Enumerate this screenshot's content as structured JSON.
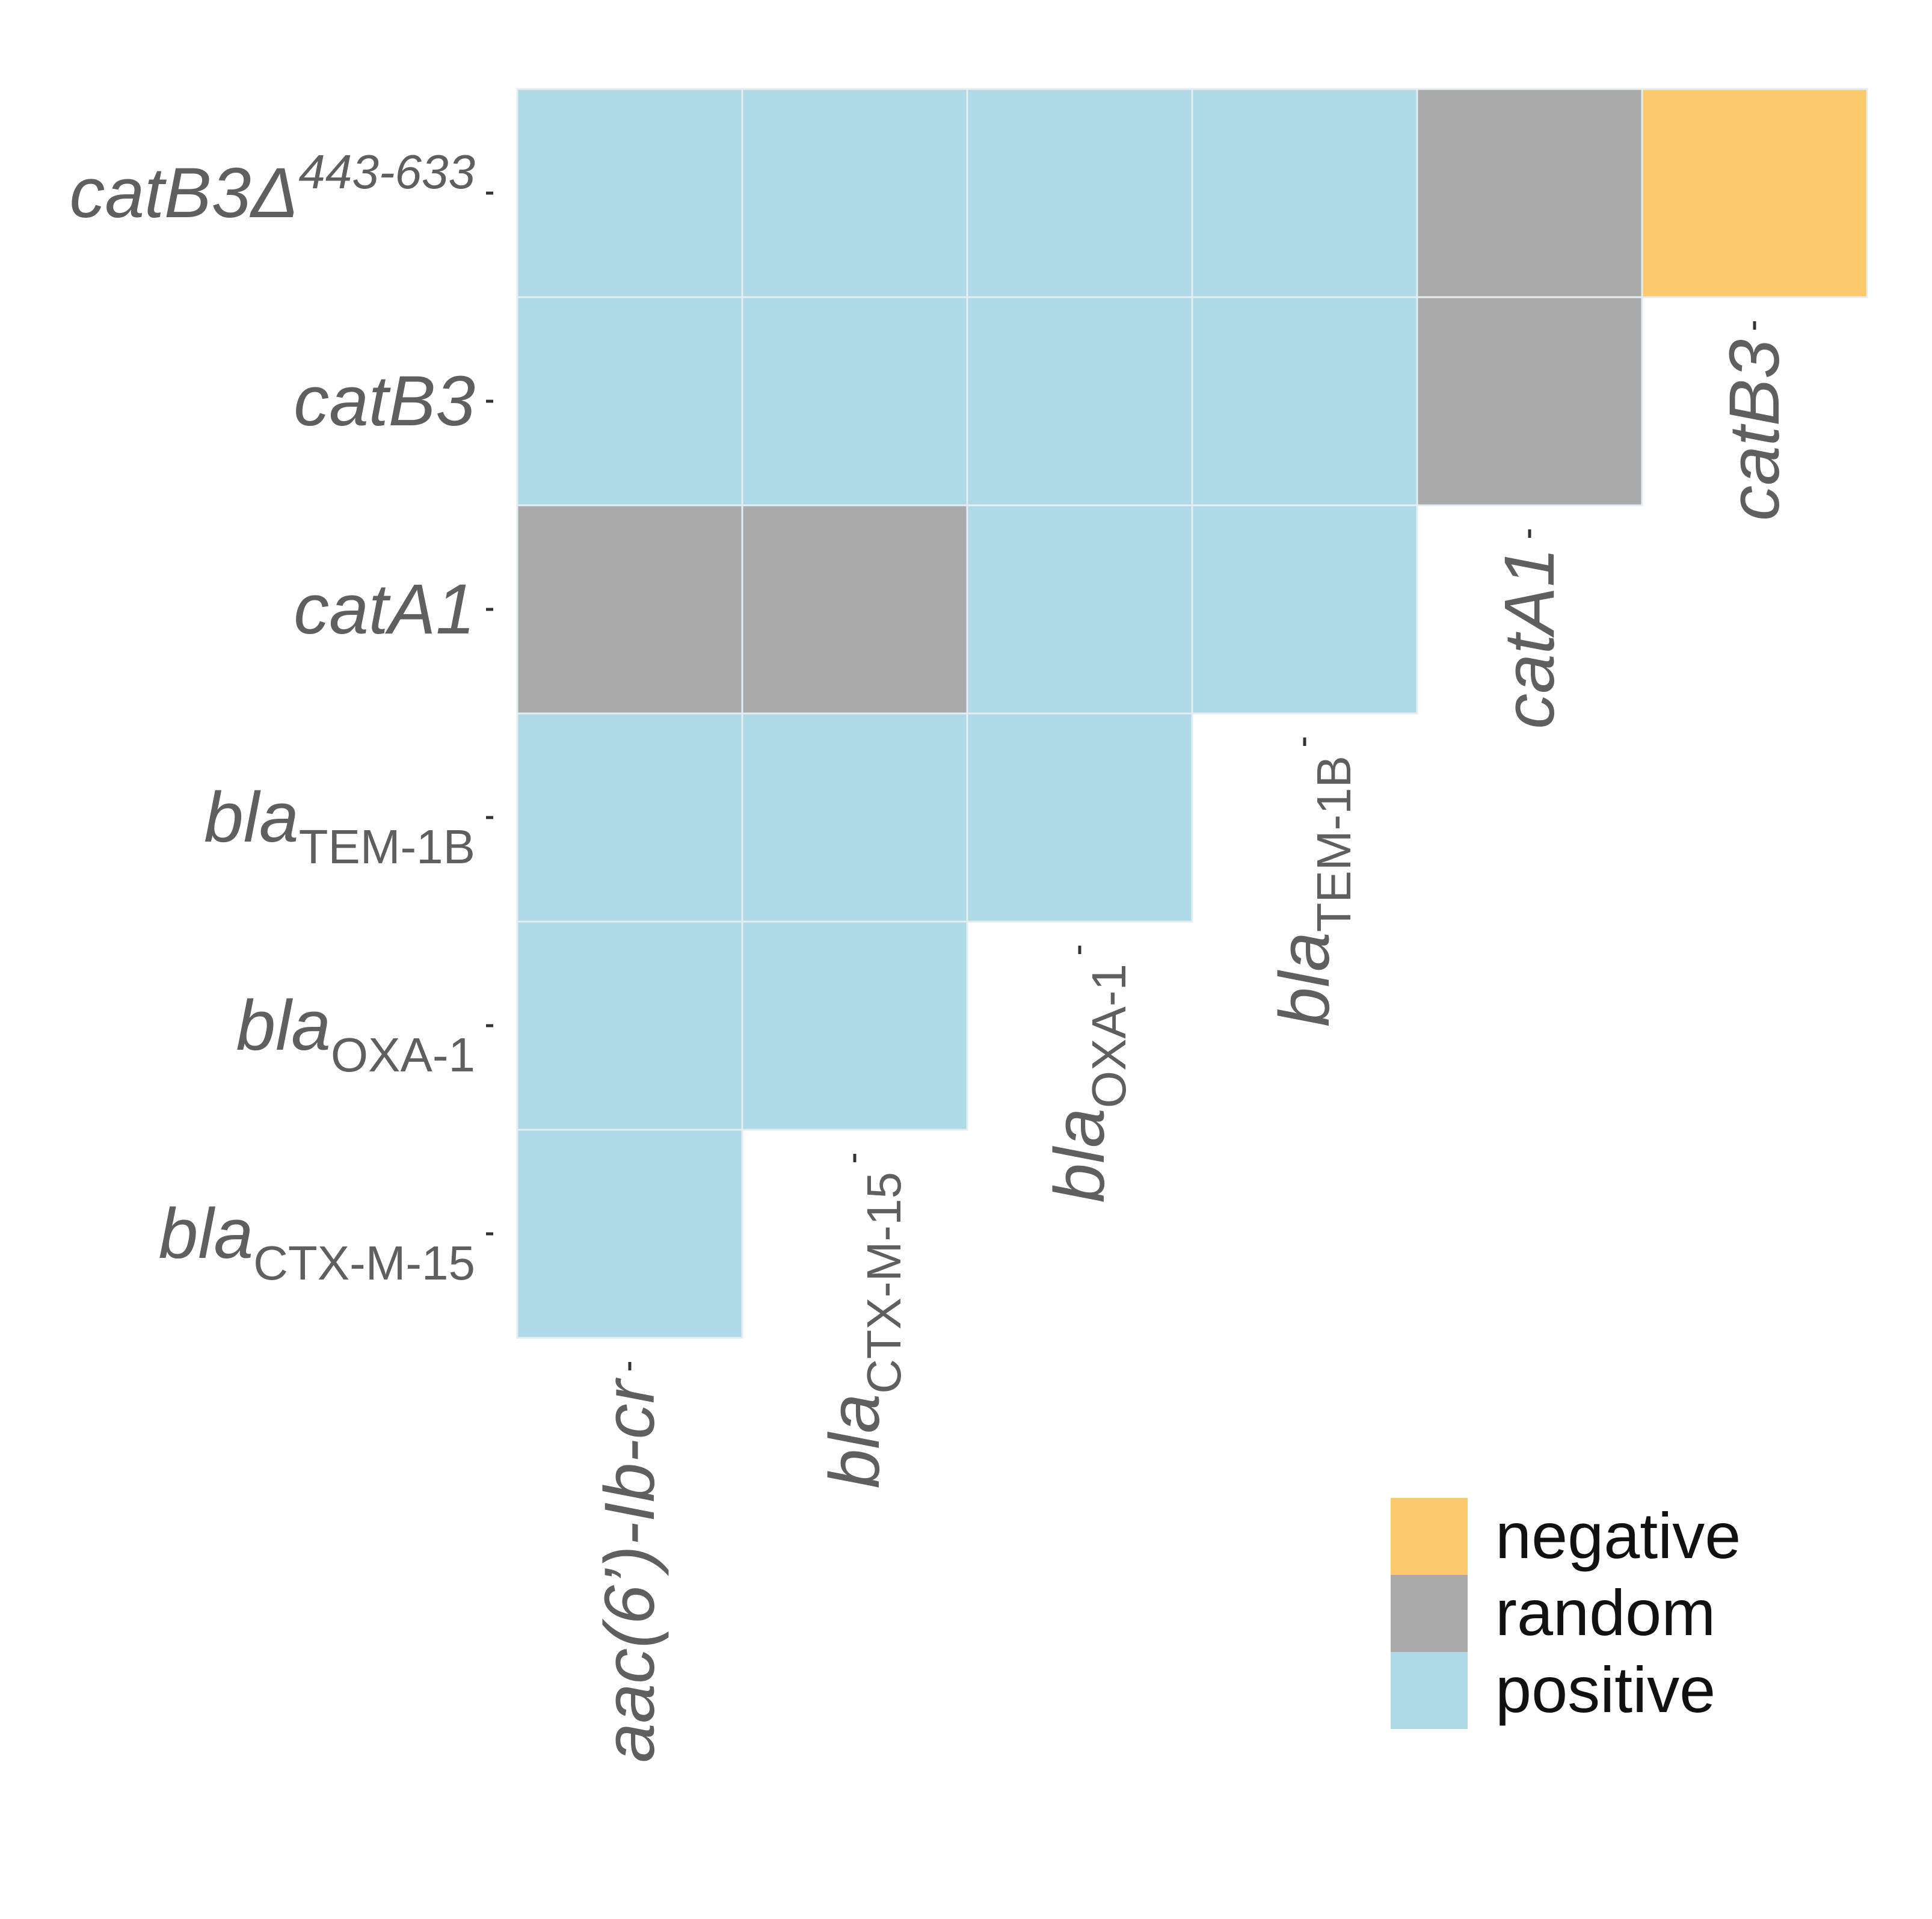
{
  "chart_data": {
    "type": "heatmap",
    "title": "",
    "xlabel": "",
    "ylabel": "",
    "y_categories": [
      {
        "main": "catB3Δ",
        "sup": "443-633",
        "sub": ""
      },
      {
        "main": "catB3",
        "sup": "",
        "sub": ""
      },
      {
        "main": "catA1",
        "sup": "",
        "sub": ""
      },
      {
        "main": "bla",
        "sup": "",
        "sub": "TEM-1B"
      },
      {
        "main": "bla",
        "sup": "",
        "sub": "OXA-1"
      },
      {
        "main": "bla",
        "sup": "",
        "sub": "CTX-M-15"
      }
    ],
    "x_categories": [
      {
        "main": "aac(6’)-Ib-cr",
        "sub": ""
      },
      {
        "main": "bla",
        "sub": "CTX-M-15"
      },
      {
        "main": "bla",
        "sub": "OXA-1"
      },
      {
        "main": "bla",
        "sub": "TEM-1B"
      },
      {
        "main": "catA1",
        "sub": ""
      },
      {
        "main": "catB3",
        "sub": ""
      }
    ],
    "cells": [
      [
        "positive",
        "positive",
        "positive",
        "positive",
        "random",
        "negative"
      ],
      [
        "positive",
        "positive",
        "positive",
        "positive",
        "random"
      ],
      [
        "random",
        "random",
        "positive",
        "positive"
      ],
      [
        "positive",
        "positive",
        "positive"
      ],
      [
        "positive",
        "positive"
      ],
      [
        "positive"
      ]
    ],
    "colors": {
      "negative": "#fdca6b",
      "random": "#aaaaaa",
      "positive": "#b0d9e6",
      "cell_border": "#e4eef2"
    },
    "legend": {
      "position": "bottom-right",
      "entries": [
        {
          "key": "negative",
          "label": "negative"
        },
        {
          "key": "random",
          "label": "random"
        },
        {
          "key": "positive",
          "label": "positive"
        }
      ]
    },
    "grid": false
  }
}
